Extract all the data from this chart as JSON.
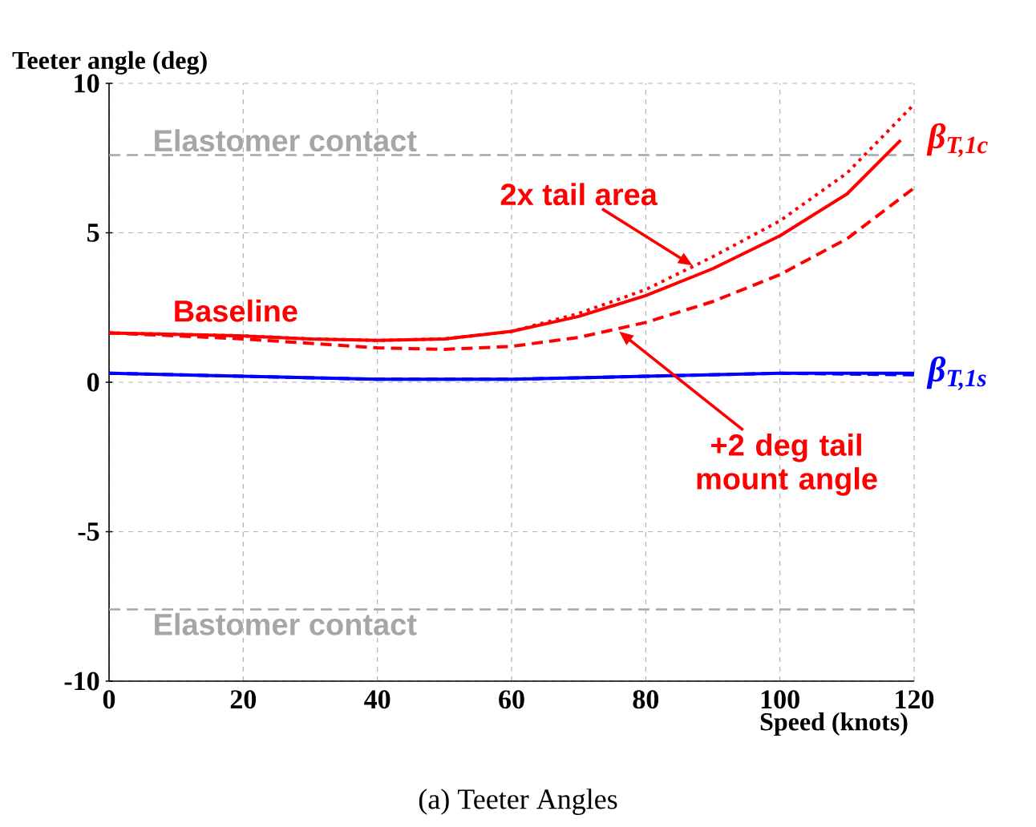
{
  "chart_data": {
    "type": "line",
    "xlabel": "Speed (knots)",
    "ylabel": "Teeter angle (deg)",
    "x": [
      0,
      10,
      20,
      30,
      40,
      50,
      60,
      70,
      80,
      90,
      100,
      110,
      118
    ],
    "series": [
      {
        "color": "#ff0000",
        "line_style": "solid",
        "values": [
          1.65,
          1.6,
          1.55,
          1.45,
          1.4,
          1.45,
          1.7,
          2.2,
          2.9,
          3.8,
          4.9,
          6.3,
          8.1
        ]
      },
      {
        "color": "#ff0000",
        "line_style": "dotted",
        "x": [
          0,
          10,
          20,
          30,
          40,
          50,
          60,
          70,
          80,
          90,
          100,
          110,
          120
        ],
        "values": [
          1.65,
          1.6,
          1.55,
          1.45,
          1.4,
          1.45,
          1.7,
          2.3,
          3.1,
          4.2,
          5.4,
          7.0,
          9.3
        ]
      },
      {
        "color": "#ff0000",
        "line_style": "dashed",
        "x": [
          0,
          10,
          20,
          30,
          40,
          50,
          60,
          70,
          80,
          90,
          100,
          110,
          120
        ],
        "values": [
          1.65,
          1.55,
          1.45,
          1.3,
          1.15,
          1.1,
          1.2,
          1.5,
          2.0,
          2.7,
          3.6,
          4.8,
          6.5
        ]
      },
      {
        "color": "#0000ff",
        "line_style": "solid",
        "x": [
          0,
          20,
          40,
          60,
          80,
          100,
          120
        ],
        "values": [
          0.3,
          0.2,
          0.1,
          0.1,
          0.2,
          0.3,
          0.3
        ]
      },
      {
        "color": "#0000ff",
        "line_style": "dashed",
        "x": [
          0,
          20,
          40,
          60,
          80,
          100,
          120
        ],
        "values": [
          0.3,
          0.2,
          0.1,
          0.1,
          0.2,
          0.3,
          0.25
        ]
      }
    ],
    "xlim": [
      0,
      120
    ],
    "ylim": [
      -10,
      10
    ],
    "xticks": [
      0,
      20,
      40,
      60,
      80,
      100,
      120
    ],
    "yticks": [
      -10,
      -5,
      0,
      5,
      10
    ],
    "grid": true,
    "ref_lines": [
      {
        "axis": "y",
        "value": 7.6,
        "label": "Elastomer contact",
        "color": "#a6a6a6",
        "line_style": "dashed"
      },
      {
        "axis": "y",
        "value": -7.6,
        "label": "Elastomer contact",
        "color": "#a6a6a6",
        "line_style": "dashed"
      }
    ],
    "annotations": [
      {
        "text": "Baseline",
        "x": 15,
        "y": 1.6
      },
      {
        "text": "2x tail area",
        "x": 87,
        "y": 3.9
      },
      {
        "text": "+2 deg tail mount angle",
        "x": 76,
        "y": 1.7
      },
      {
        "text": "β$_{T,1c}$",
        "x": 118,
        "y": 8.1
      },
      {
        "text": "β$_{T,1s}$",
        "x": 120,
        "y": 0.3
      },
      "(a) Teeter Angles"
    ]
  }
}
